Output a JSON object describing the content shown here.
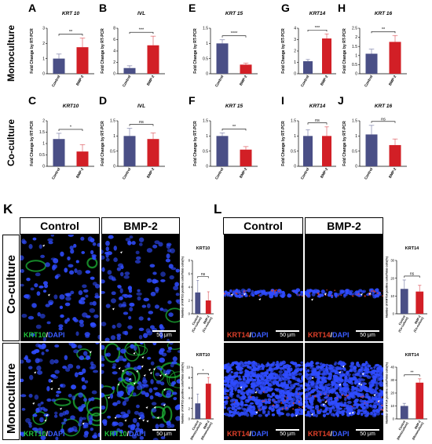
{
  "panel_letters": [
    "A",
    "B",
    "C",
    "D",
    "E",
    "F",
    "G",
    "H",
    "I",
    "J",
    "K",
    "L"
  ],
  "row_labels": {
    "mono": "Monoculture",
    "co": "Co-culture"
  },
  "micro_columns": {
    "control": "Control",
    "bmp2": "BMP-2"
  },
  "stain_labels": {
    "krt10": {
      "marker": "KRT10",
      "sep": "/",
      "dapi": "DAPI"
    },
    "krt14": {
      "marker": "KRT14",
      "sep": "/",
      "dapi": "DAPI"
    }
  },
  "scale_bar": "50 μm",
  "colors": {
    "control": "#4a4f86",
    "bmp2": "#d21f26",
    "krt10": "#20c03a",
    "krt14": "#e0402a",
    "dapi": "#2f4cff"
  },
  "chart_data": [
    {
      "panel": "A",
      "type": "bar",
      "title": "KRT 10",
      "ylabel": "Fold Change by RT-PCR",
      "categories": [
        "Control",
        "BMP-2"
      ],
      "values": [
        1.0,
        1.75
      ],
      "errors": [
        0.3,
        0.6
      ],
      "ylim": [
        0,
        3
      ],
      "ticks": [
        0,
        1,
        2,
        3
      ],
      "significance": "**"
    },
    {
      "panel": "B",
      "type": "bar",
      "title": "IVL",
      "ylabel": "Fold Change by RT-PCR",
      "categories": [
        "Control",
        "BMP-2"
      ],
      "values": [
        1.0,
        5.0
      ],
      "errors": [
        0.4,
        1.6
      ],
      "ylim": [
        0,
        8
      ],
      "ticks": [
        0,
        2,
        4,
        6,
        8
      ],
      "significance": "***"
    },
    {
      "panel": "C",
      "type": "bar",
      "title": "KRT10",
      "ylabel": "Fold Change by RT-PCR",
      "categories": [
        "Control",
        "BMP-2"
      ],
      "values": [
        1.2,
        0.65
      ],
      "errors": [
        0.25,
        0.3
      ],
      "ylim": [
        0,
        2.0
      ],
      "ticks": [
        0.0,
        0.5,
        1.0,
        1.5,
        2.0
      ],
      "significance": "*"
    },
    {
      "panel": "D",
      "type": "bar",
      "title": "IVL",
      "ylabel": "Fold Change by RT-PCR",
      "categories": [
        "Control",
        "BMP-2"
      ],
      "values": [
        1.0,
        0.9
      ],
      "errors": [
        0.25,
        0.2
      ],
      "ylim": [
        0,
        1.5
      ],
      "ticks": [
        0.0,
        0.5,
        1.0,
        1.5
      ],
      "significance": "ns"
    },
    {
      "panel": "E",
      "type": "bar",
      "title": "KRT 15",
      "ylabel": "Fold Change by RT-PCR",
      "categories": [
        "Control",
        "BMP-2"
      ],
      "values": [
        1.0,
        0.3
      ],
      "errors": [
        0.12,
        0.05
      ],
      "ylim": [
        0,
        1.5
      ],
      "ticks": [
        0.0,
        0.5,
        1.0,
        1.5
      ],
      "significance": "****"
    },
    {
      "panel": "F",
      "type": "bar",
      "title": "KRT 15",
      "ylabel": "Fold Change by RT-PCR",
      "categories": [
        "Control",
        "BMP-2"
      ],
      "values": [
        1.0,
        0.55
      ],
      "errors": [
        0.1,
        0.1
      ],
      "ylim": [
        0,
        1.5
      ],
      "ticks": [
        0.0,
        0.5,
        1.0,
        1.5
      ],
      "significance": "**"
    },
    {
      "panel": "G",
      "type": "bar",
      "title": "KRT14",
      "ylabel": "Fold Change by RT-PCR",
      "categories": [
        "Control",
        "BMP-2"
      ],
      "values": [
        1.1,
        3.1
      ],
      "errors": [
        0.15,
        0.4
      ],
      "ylim": [
        0,
        4
      ],
      "ticks": [
        0,
        1,
        2,
        3,
        4
      ],
      "significance": "***"
    },
    {
      "panel": "H",
      "type": "bar",
      "title": "KRT 16",
      "ylabel": "Fold Change by RT-PCR",
      "categories": [
        "Control",
        "BMP-2"
      ],
      "values": [
        1.1,
        1.75
      ],
      "errors": [
        0.25,
        0.35
      ],
      "ylim": [
        0,
        2.5
      ],
      "ticks": [
        0.0,
        0.5,
        1.0,
        1.5,
        2.0,
        2.5
      ],
      "significance": "**"
    },
    {
      "panel": "I",
      "type": "bar",
      "title": "KRT14",
      "ylabel": "Fold Change by RT-PCR",
      "categories": [
        "Control",
        "BMP-2"
      ],
      "values": [
        1.0,
        1.0
      ],
      "errors": [
        0.2,
        0.3
      ],
      "ylim": [
        0,
        1.5
      ],
      "ticks": [
        0.0,
        0.5,
        1.0,
        1.5
      ],
      "significance": "ns"
    },
    {
      "panel": "J",
      "type": "bar",
      "title": "KRT 16",
      "ylabel": "Fold Change by RT-PCR",
      "categories": [
        "Control",
        "BMP-2"
      ],
      "values": [
        1.05,
        0.7
      ],
      "errors": [
        0.3,
        0.2
      ],
      "ylim": [
        0,
        1.5
      ],
      "ticks": [
        0.0,
        0.5,
        1.0,
        1.5
      ],
      "significance": "ns"
    },
    {
      "panel": "K-co",
      "type": "bar",
      "title": "KRT10",
      "ylabel": "Number of KRT10 positive cells/Total cells(%)",
      "categories": [
        "Control (Co-culture)",
        "BMP-2 (Co-culture)"
      ],
      "values": [
        3.2,
        2.0
      ],
      "errors": [
        1.8,
        1.3
      ],
      "ylim": [
        0,
        8
      ],
      "ticks": [
        0,
        2,
        4,
        6,
        8
      ],
      "significance": "ns"
    },
    {
      "panel": "K-mono",
      "type": "bar",
      "title": "KRT10",
      "ylabel": "Number of KRT10 positive cells/Total cells(%)",
      "categories": [
        "Control (Monoculture)",
        "BMP-2 (Monoculture)"
      ],
      "values": [
        3.0,
        6.8
      ],
      "errors": [
        1.8,
        1.2
      ],
      "ylim": [
        0,
        10
      ],
      "ticks": [
        0,
        2,
        4,
        6,
        8,
        10
      ],
      "significance": "*"
    },
    {
      "panel": "L-co",
      "type": "bar",
      "title": "KRT14",
      "ylabel": "Number of KRT14 positive cells/Total cells(%)",
      "categories": [
        "Control (Co-culture)",
        "BMP-2 (Co-culture)"
      ],
      "values": [
        14,
        12.5
      ],
      "errors": [
        5,
        3.5
      ],
      "ylim": [
        0,
        30
      ],
      "ticks": [
        0,
        10,
        20,
        30
      ],
      "significance": "ns"
    },
    {
      "panel": "L-mono",
      "type": "bar",
      "title": "KRT14",
      "ylabel": "Number of KRT14 positive cells/Total cells(%)",
      "categories": [
        "Control (Monoculture)",
        "BMP-2 (Monoculture)"
      ],
      "values": [
        10,
        28
      ],
      "errors": [
        2,
        3
      ],
      "ylim": [
        0,
        40
      ],
      "ticks": [
        0,
        10,
        20,
        30,
        40
      ],
      "significance": "**"
    }
  ]
}
